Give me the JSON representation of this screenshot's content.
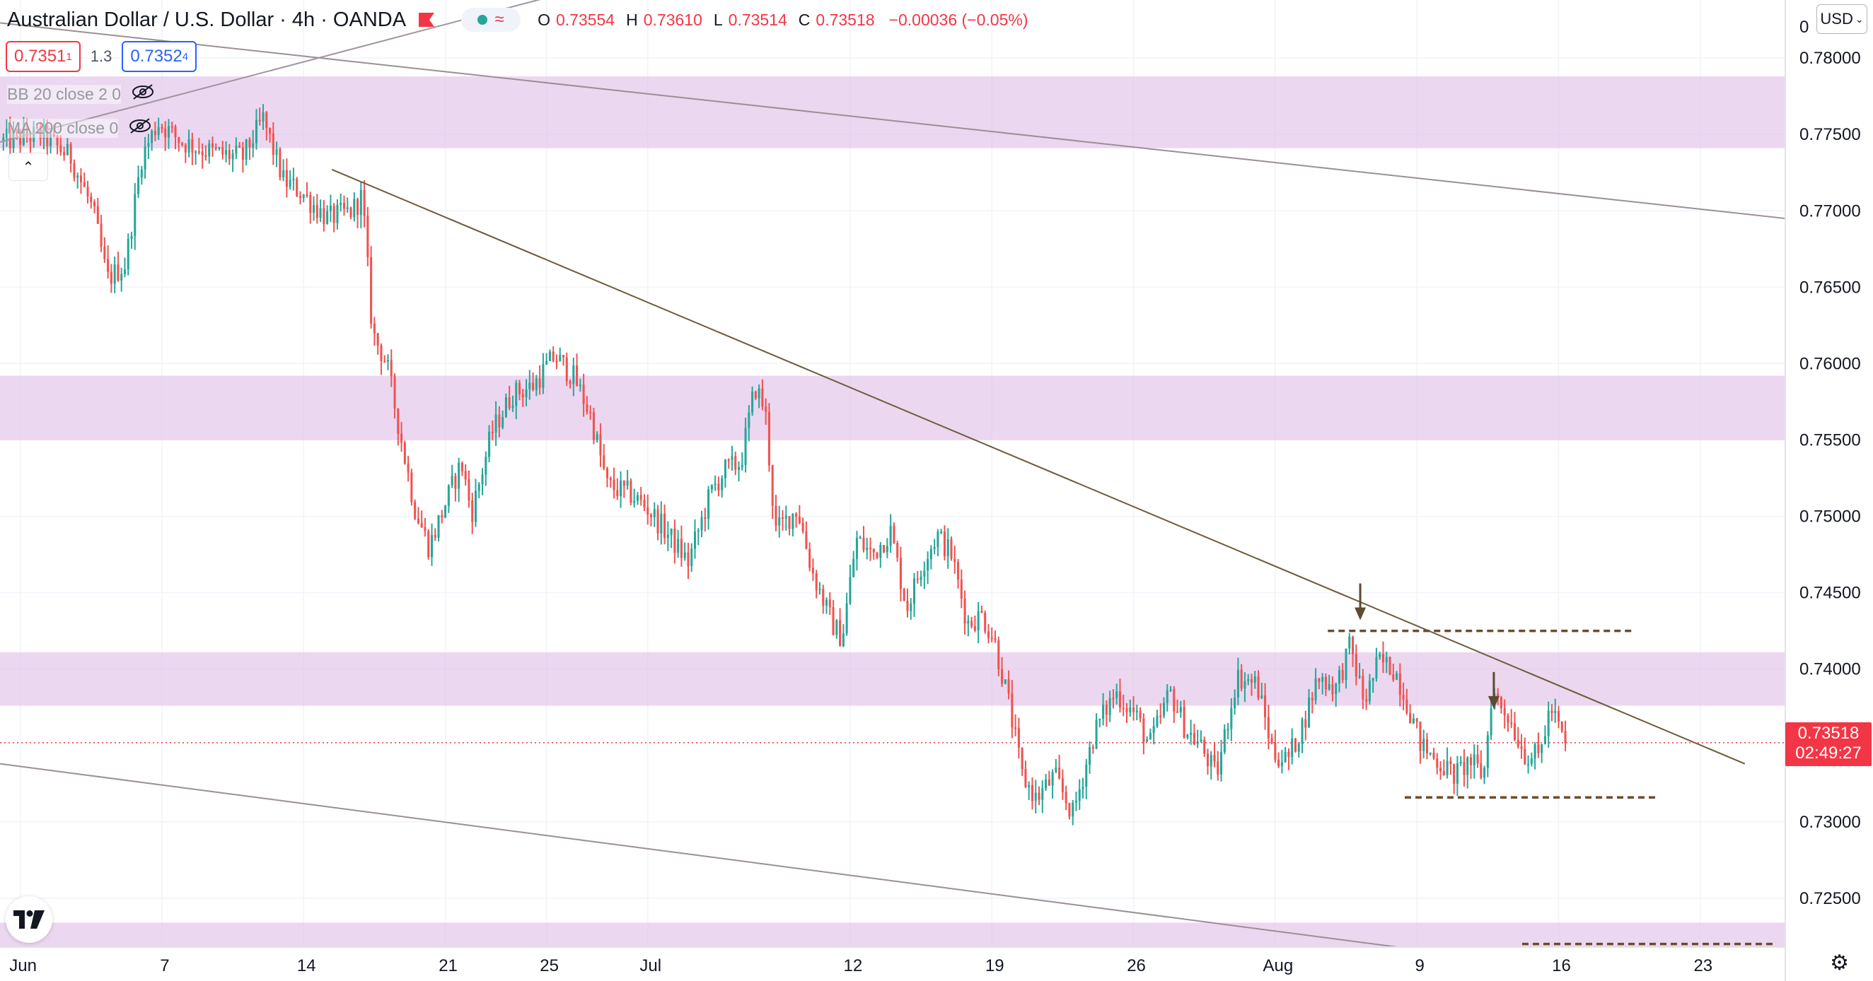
{
  "header": {
    "title": "Australian Dollar / U.S. Dollar · 4h · OANDA",
    "ohlc": [
      {
        "k": "O",
        "v": "0.73554"
      },
      {
        "k": "H",
        "v": "0.73610"
      },
      {
        "k": "L",
        "v": "0.73514"
      },
      {
        "k": "C",
        "v": "0.73518"
      }
    ],
    "change": "−0.00036 (−0.05%)"
  },
  "trade": {
    "sell_main": "0.7351",
    "sell_sup": "1",
    "spread": "1.3",
    "buy_main": "0.7352",
    "buy_sup": "4"
  },
  "indicators": {
    "bb": "BB 20 close 2 0",
    "ma": "MA 200 close 0"
  },
  "currency_button": "USD",
  "last_price": {
    "value": "0.73518",
    "countdown": "02:49:27"
  },
  "colors": {
    "up": "#26a69a",
    "down": "#ef5350",
    "zone": "#e1bee7",
    "trendline": "#6d5a3c",
    "price_line": "#f23645"
  },
  "chart_data": {
    "type": "candlestick",
    "symbol": "Australian Dollar / U.S. Dollar",
    "interval": "4h",
    "ylim": [
      0.7218,
      0.7838
    ],
    "yticks": [
      "0.78000",
      "0.77500",
      "0.77000",
      "0.76500",
      "0.76000",
      "0.75500",
      "0.75000",
      "0.74500",
      "0.74000",
      "0.73000",
      "0.72500"
    ],
    "y_top_partial": "0",
    "xticks": [
      {
        "label": "Jun",
        "t": 0
      },
      {
        "label": "7",
        "t": 7
      },
      {
        "label": "14",
        "t": 14
      },
      {
        "label": "21",
        "t": 21
      },
      {
        "label": "25",
        "t": 26
      },
      {
        "label": "Jul",
        "t": 31
      },
      {
        "label": "12",
        "t": 41
      },
      {
        "label": "19",
        "t": 48
      },
      {
        "label": "26",
        "t": 55
      },
      {
        "label": "Aug",
        "t": 62
      },
      {
        "label": "9",
        "t": 69
      },
      {
        "label": "16",
        "t": 76
      },
      {
        "label": "23",
        "t": 83
      }
    ],
    "x_range": [
      -1.0,
      87.2
    ],
    "anchors": [
      {
        "t": -1,
        "p": 0.7745
      },
      {
        "t": 1,
        "p": 0.775
      },
      {
        "t": 2.5,
        "p": 0.7735
      },
      {
        "t": 3.6,
        "p": 0.77
      },
      {
        "t": 4.3,
        "p": 0.7655
      },
      {
        "t": 5.2,
        "p": 0.7665
      },
      {
        "t": 6.0,
        "p": 0.7735
      },
      {
        "t": 6.8,
        "p": 0.7758
      },
      {
        "t": 8.0,
        "p": 0.7745
      },
      {
        "t": 9.5,
        "p": 0.7738
      },
      {
        "t": 11.0,
        "p": 0.7735
      },
      {
        "t": 12.0,
        "p": 0.776
      },
      {
        "t": 13.0,
        "p": 0.772
      },
      {
        "t": 13.9,
        "p": 0.7712
      },
      {
        "t": 14.4,
        "p": 0.7705
      },
      {
        "t": 15.2,
        "p": 0.7695
      },
      {
        "t": 16.4,
        "p": 0.77
      },
      {
        "t": 16.9,
        "p": 0.771
      },
      {
        "t": 17.4,
        "p": 0.762
      },
      {
        "t": 18.1,
        "p": 0.76
      },
      {
        "t": 18.9,
        "p": 0.7545
      },
      {
        "t": 19.5,
        "p": 0.7505
      },
      {
        "t": 20.2,
        "p": 0.748
      },
      {
        "t": 21.2,
        "p": 0.7515
      },
      {
        "t": 21.8,
        "p": 0.7535
      },
      {
        "t": 22.3,
        "p": 0.7502
      },
      {
        "t": 23.3,
        "p": 0.7555
      },
      {
        "t": 24.3,
        "p": 0.758
      },
      {
        "t": 25.3,
        "p": 0.7585
      },
      {
        "t": 26.4,
        "p": 0.7605
      },
      {
        "t": 27.4,
        "p": 0.759
      },
      {
        "t": 28.2,
        "p": 0.7565
      },
      {
        "t": 29.0,
        "p": 0.752
      },
      {
        "t": 30.1,
        "p": 0.7515
      },
      {
        "t": 31.0,
        "p": 0.7505
      },
      {
        "t": 31.9,
        "p": 0.749
      },
      {
        "t": 33.0,
        "p": 0.747
      },
      {
        "t": 34.1,
        "p": 0.7515
      },
      {
        "t": 34.8,
        "p": 0.753
      },
      {
        "t": 35.6,
        "p": 0.7535
      },
      {
        "t": 36.3,
        "p": 0.7585
      },
      {
        "t": 36.8,
        "p": 0.757
      },
      {
        "t": 37.3,
        "p": 0.749
      },
      {
        "t": 38.4,
        "p": 0.7505
      },
      {
        "t": 39.1,
        "p": 0.7465
      },
      {
        "t": 40.1,
        "p": 0.743
      },
      {
        "t": 40.6,
        "p": 0.742
      },
      {
        "t": 41.3,
        "p": 0.7485
      },
      {
        "t": 42.1,
        "p": 0.7475
      },
      {
        "t": 43.0,
        "p": 0.749
      },
      {
        "t": 43.8,
        "p": 0.744
      },
      {
        "t": 44.6,
        "p": 0.747
      },
      {
        "t": 45.3,
        "p": 0.7488
      },
      {
        "t": 46.0,
        "p": 0.7475
      },
      {
        "t": 46.8,
        "p": 0.743
      },
      {
        "t": 47.5,
        "p": 0.7435
      },
      {
        "t": 48.1,
        "p": 0.742
      },
      {
        "t": 48.8,
        "p": 0.738
      },
      {
        "t": 49.5,
        "p": 0.733
      },
      {
        "t": 50.2,
        "p": 0.7315
      },
      {
        "t": 51.1,
        "p": 0.733
      },
      {
        "t": 52.0,
        "p": 0.7305
      },
      {
        "t": 53.1,
        "p": 0.736
      },
      {
        "t": 54.1,
        "p": 0.7385
      },
      {
        "t": 55.1,
        "p": 0.737
      },
      {
        "t": 55.8,
        "p": 0.735
      },
      {
        "t": 56.8,
        "p": 0.7385
      },
      {
        "t": 57.6,
        "p": 0.736
      },
      {
        "t": 58.3,
        "p": 0.735
      },
      {
        "t": 59.1,
        "p": 0.733
      },
      {
        "t": 60.1,
        "p": 0.7395
      },
      {
        "t": 61.1,
        "p": 0.739
      },
      {
        "t": 61.9,
        "p": 0.7345
      },
      {
        "t": 62.6,
        "p": 0.734
      },
      {
        "t": 63.4,
        "p": 0.7365
      },
      {
        "t": 64.1,
        "p": 0.7395
      },
      {
        "t": 65.0,
        "p": 0.7388
      },
      {
        "t": 65.7,
        "p": 0.7415
      },
      {
        "t": 66.4,
        "p": 0.7378
      },
      {
        "t": 67.1,
        "p": 0.7405
      },
      {
        "t": 67.9,
        "p": 0.74
      },
      {
        "t": 68.6,
        "p": 0.7375
      },
      {
        "t": 69.2,
        "p": 0.735
      },
      {
        "t": 70.0,
        "p": 0.734
      },
      {
        "t": 70.9,
        "p": 0.733
      },
      {
        "t": 71.6,
        "p": 0.734
      },
      {
        "t": 72.3,
        "p": 0.733
      },
      {
        "t": 72.7,
        "p": 0.7385
      },
      {
        "t": 73.5,
        "p": 0.737
      },
      {
        "t": 74.3,
        "p": 0.7345
      },
      {
        "t": 75.0,
        "p": 0.7342
      },
      {
        "t": 75.6,
        "p": 0.7375
      },
      {
        "t": 76.3,
        "p": 0.73518
      }
    ],
    "zones": [
      {
        "from": 0.7741,
        "to": 0.7788
      },
      {
        "from": 0.755,
        "to": 0.7592
      },
      {
        "from": 0.7376,
        "to": 0.7411
      },
      {
        "from": 0.7218,
        "to": 0.7234
      }
    ],
    "trendlines": [
      {
        "t1": 15.4,
        "p1": 0.7727,
        "t2": 85.2,
        "p2": 0.7338,
        "color": "#6d5a3c"
      },
      {
        "t1": -1.0,
        "p1": 0.7823,
        "t2": 87.2,
        "p2": 0.7695,
        "color": "#9a8f95"
      },
      {
        "t1": -1.0,
        "p1": 0.7745,
        "t2": 29.0,
        "p2": 0.785,
        "color": "#a095a0"
      },
      {
        "t1": -1.0,
        "p1": 0.7338,
        "t2": 68.6,
        "p2": 0.7217,
        "color": "#9a8f95"
      }
    ],
    "levels_dashed": [
      {
        "t1": 64.6,
        "p": 0.7425,
        "t2": 79.7
      },
      {
        "t1": 68.4,
        "p": 0.7316,
        "t2": 80.8
      },
      {
        "t1": 74.2,
        "p": 0.722,
        "t2": 86.6
      }
    ],
    "arrows": [
      {
        "t": 66.2,
        "p": 0.7432
      },
      {
        "t": 72.8,
        "p": 0.7374
      }
    ],
    "last": 0.73518
  }
}
